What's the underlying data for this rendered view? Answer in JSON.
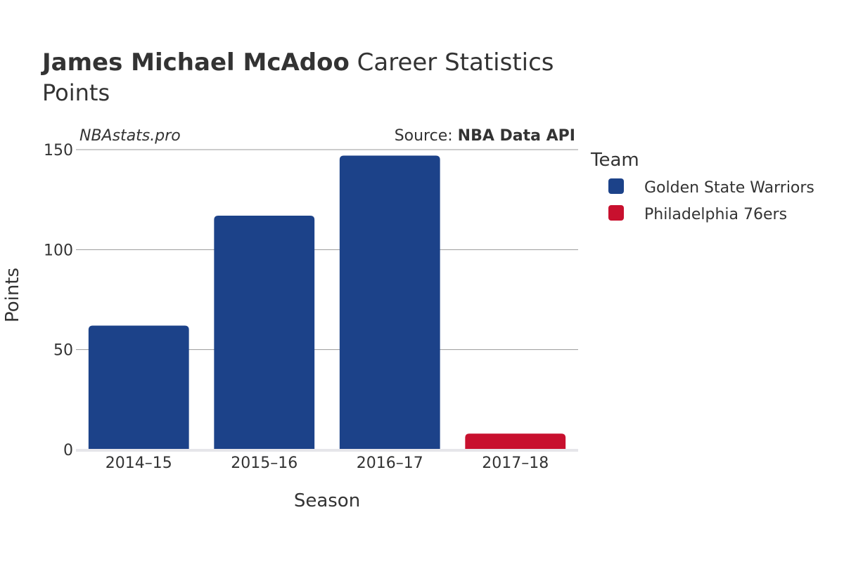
{
  "header": {
    "title_bold": "James Michael McAdoo",
    "title_rest": " Career Statistics",
    "subtitle": "Points"
  },
  "watermark": "NBAstats.pro",
  "source": {
    "prefix": "Source: ",
    "name": "NBA Data API"
  },
  "legend": {
    "title": "Team",
    "placement": "right",
    "items": [
      {
        "label": "Golden State Warriors",
        "color": "#1c4289"
      },
      {
        "label": "Philadelphia 76ers",
        "color": "#c8102e"
      }
    ]
  },
  "chart_data": {
    "type": "bar",
    "categories": [
      "2014–15",
      "2015–16",
      "2016–17",
      "2017–18"
    ],
    "values": [
      62,
      117,
      147,
      8
    ],
    "teams": [
      "Golden State Warriors",
      "Golden State Warriors",
      "Golden State Warriors",
      "Philadelphia 76ers"
    ],
    "series": [
      {
        "name": "Golden State Warriors",
        "values": [
          62,
          117,
          147,
          null
        ]
      },
      {
        "name": "Philadelphia 76ers",
        "values": [
          null,
          null,
          null,
          8
        ]
      }
    ],
    "xlabel": "Season",
    "ylabel": "Points",
    "ylim": [
      0,
      150
    ],
    "yticks": [
      0,
      50,
      100,
      150
    ],
    "grid": true
  }
}
